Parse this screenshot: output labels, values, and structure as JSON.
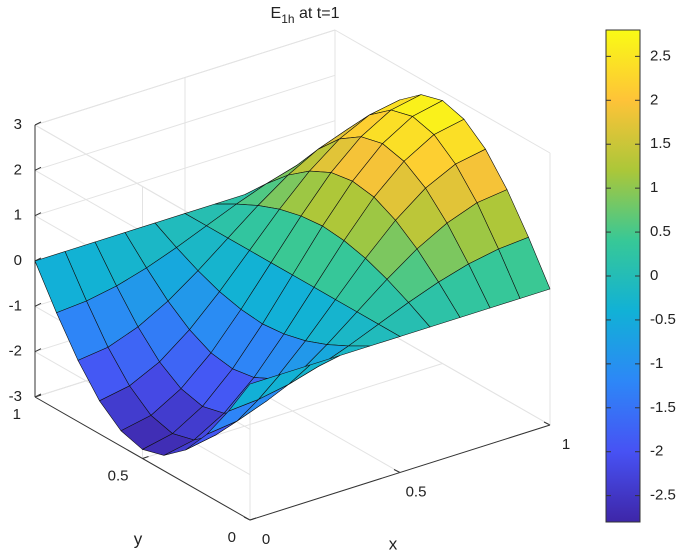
{
  "chart_data": {
    "type": "surface",
    "title": {
      "main": "E",
      "sub": "1h",
      "rest": " at t=1"
    },
    "xlabel": "x",
    "ylabel": "y",
    "x": [
      0,
      0.1,
      0.2,
      0.3,
      0.4,
      0.5,
      0.6,
      0.7,
      0.8,
      0.9,
      1
    ],
    "y": [
      0,
      0.1,
      0.2,
      0.3,
      0.4,
      0.5,
      0.6,
      0.7,
      0.8,
      0.9,
      1
    ],
    "z": [
      [
        0,
        0,
        0,
        0,
        0,
        0,
        0,
        0,
        0,
        0,
        0
      ],
      [
        -0.87,
        -0.82,
        -0.7,
        -0.51,
        -0.27,
        0,
        0.27,
        0.51,
        0.7,
        0.82,
        0.87
      ],
      [
        -1.65,
        -1.57,
        -1.33,
        -0.97,
        -0.51,
        0,
        0.51,
        0.97,
        1.33,
        1.57,
        1.65
      ],
      [
        -2.27,
        -2.15,
        -1.83,
        -1.33,
        -0.7,
        0,
        0.7,
        1.33,
        1.83,
        2.15,
        2.27
      ],
      [
        -2.66,
        -2.53,
        -2.15,
        -1.57,
        -0.82,
        0,
        0.82,
        1.57,
        2.15,
        2.53,
        2.66
      ],
      [
        -2.8,
        -2.66,
        -2.27,
        -1.65,
        -0.87,
        0,
        0.87,
        1.65,
        2.27,
        2.66,
        2.8
      ],
      [
        -2.66,
        -2.53,
        -2.15,
        -1.57,
        -0.82,
        0,
        0.82,
        1.57,
        2.15,
        2.53,
        2.66
      ],
      [
        -2.27,
        -2.15,
        -1.83,
        -1.33,
        -0.7,
        0,
        0.7,
        1.33,
        1.83,
        2.15,
        2.27
      ],
      [
        -1.65,
        -1.57,
        -1.33,
        -0.97,
        -0.51,
        0,
        0.51,
        0.97,
        1.33,
        1.57,
        1.65
      ],
      [
        -0.87,
        -0.82,
        -0.7,
        -0.51,
        -0.27,
        0,
        0.27,
        0.51,
        0.7,
        0.82,
        0.87
      ],
      [
        0,
        0,
        0,
        0,
        0,
        0,
        0,
        0,
        0,
        0,
        0
      ]
    ],
    "xlim": [
      0,
      1
    ],
    "xticks": [
      0,
      0.5,
      1
    ],
    "ylim": [
      0,
      1
    ],
    "yticks": [
      0,
      0.5,
      1
    ],
    "zlim": [
      -3,
      3
    ],
    "zticks": [
      -3,
      -2,
      -1,
      0,
      1,
      2,
      3
    ],
    "grid": true,
    "colormap": [
      "#3e26a8",
      "#4752f4",
      "#2d87f7",
      "#11b1d6",
      "#37c897",
      "#abc739",
      "#fec338",
      "#f9fb15"
    ],
    "clim": [
      -2.8,
      2.8
    ],
    "colorbar_ticks": [
      -2.5,
      -2,
      -1.5,
      -1,
      -0.5,
      0,
      0.5,
      1,
      1.5,
      2,
      2.5
    ]
  }
}
